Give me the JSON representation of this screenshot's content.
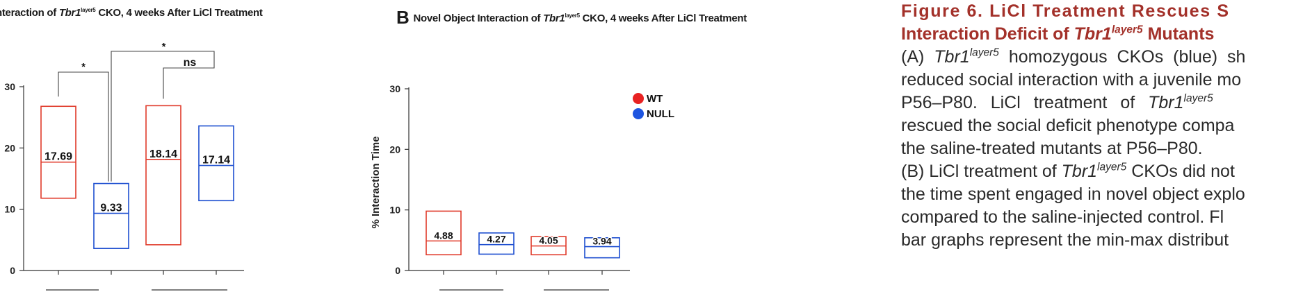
{
  "panel_a": {
    "title_prefix": "nteraction of ",
    "gene": "Tbr1",
    "gene_sup": "layer5",
    "title_suffix": " CKO, 4 weeks After LiCl Treatment",
    "sig_labels": [
      "*",
      "*",
      "ns"
    ]
  },
  "panel_b": {
    "letter": "B",
    "title_prefix": "Novel Object Interaction of ",
    "gene": "Tbr1",
    "gene_sup": "layer5",
    "title_suffix": " CKO, 4 weeks After LiCl Treatment",
    "legend": [
      {
        "label": "WT",
        "color": "#e82222"
      },
      {
        "label": "NULL",
        "color": "#1e55e0"
      }
    ]
  },
  "chart_data": [
    {
      "type": "box",
      "title": "",
      "ylabel": "",
      "ylim": [
        0,
        30
      ],
      "yticks": [
        "0",
        "10",
        "20",
        "30"
      ],
      "series": [
        {
          "name": "",
          "color": "#e03a2a",
          "min": 11.8,
          "max": 26.8,
          "mean": 17.69,
          "label": "17.69"
        },
        {
          "name": "",
          "color": "#1e4fd0",
          "min": 3.6,
          "max": 14.2,
          "mean": 9.33,
          "label": "9.33"
        },
        {
          "name": "",
          "color": "#e03a2a",
          "min": 4.2,
          "max": 26.9,
          "mean": 18.14,
          "label": "18.14"
        },
        {
          "name": "",
          "color": "#1e4fd0",
          "min": 11.4,
          "max": 23.6,
          "mean": 17.14,
          "label": "17.14"
        }
      ]
    },
    {
      "type": "box",
      "title": "",
      "ylabel": "% Interaction Time",
      "ylim": [
        0,
        30
      ],
      "yticks": [
        "0",
        "10",
        "20",
        "30"
      ],
      "series": [
        {
          "name": "",
          "color": "#e03a2a",
          "min": 2.6,
          "max": 9.8,
          "mean": 4.88,
          "label": "4.88"
        },
        {
          "name": "",
          "color": "#1e4fd0",
          "min": 2.7,
          "max": 6.2,
          "mean": 4.27,
          "label": "4.27"
        },
        {
          "name": "",
          "color": "#e03a2a",
          "min": 2.6,
          "max": 5.6,
          "mean": 4.05,
          "label": "4.05"
        },
        {
          "name": "",
          "color": "#1e4fd0",
          "min": 2.1,
          "max": 5.4,
          "mean": 3.94,
          "label": "3.94"
        }
      ]
    }
  ],
  "caption": {
    "title_line1": "Figure 6. LiCl Treatment Rescues S",
    "title_line2_prefix": "Interaction Deficit of ",
    "title_gene": "Tbr1",
    "title_gene_sup": "layer5",
    "title_line2_suffix": " Mutants",
    "l1_a": "(A) ",
    "l1_gene": "Tbr1",
    "l1_sup": "layer5",
    "l1_b": " homozygous CKOs (blue) sh",
    "l2": "reduced social interaction with a juvenile mo",
    "l3_a": "P56–P80. LiCl treatment of ",
    "l3_gene": "Tbr1",
    "l3_sup": "layer5",
    "l4": "rescued the social deficit phenotype compa",
    "l5": "the saline-treated mutants at P56–P80.",
    "l6_a": "(B) LiCl treatment of ",
    "l6_gene": "Tbr1",
    "l6_sup": "layer5",
    "l6_b": " CKOs did not",
    "l7": "the time spent engaged in novel object explo",
    "l8": "compared to the saline-injected control. Fl",
    "l9": "bar graphs represent the min-max distribut"
  }
}
